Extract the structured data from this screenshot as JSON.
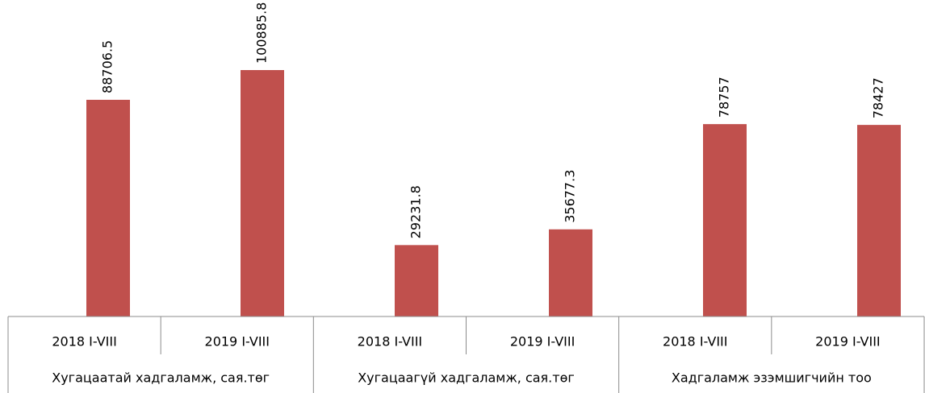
{
  "chart_data": {
    "type": "bar",
    "categories": [
      "2018 I-VIII",
      "2019 I-VIII",
      "2018 I-VIII",
      "2019 I-VIII",
      "2018 I-VIII",
      "2019 I-VIII"
    ],
    "category_groups": [
      "Хугацаатай хадгаламж, сая.төг",
      "Хугацаагүй хадгаламж, сая.төг",
      "Хадгаламж эзэмшигчийн тоо"
    ],
    "values": [
      88706.5,
      100885.8,
      29231.8,
      35677.3,
      78757,
      78427
    ],
    "color": "#c0504d"
  }
}
